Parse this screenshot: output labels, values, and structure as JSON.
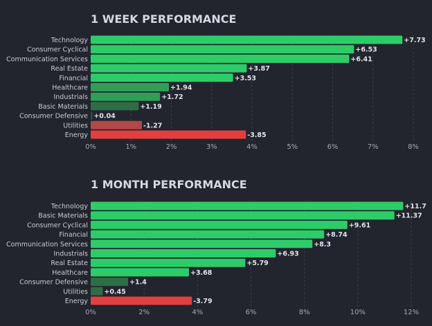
{
  "chart_data": [
    {
      "type": "bar",
      "title": "1 WEEK PERFORMANCE",
      "categories": [
        "Technology",
        "Consumer Cyclical",
        "Communication Services",
        "Real Estate",
        "Financial",
        "Healthcare",
        "Industrials",
        "Basic Materials",
        "Consumer Defensive",
        "Utilities",
        "Energy"
      ],
      "values": [
        7.73,
        6.53,
        6.41,
        3.87,
        3.53,
        1.94,
        1.72,
        1.19,
        0.04,
        -1.27,
        -3.85
      ],
      "value_labels": [
        "+7.73",
        "+6.53",
        "+6.41",
        "+3.87",
        "+3.53",
        "+1.94",
        "+1.72",
        "+1.19",
        "+0.04",
        "-1.27",
        "-3.85"
      ],
      "xlim": [
        0,
        8
      ],
      "xticks": [
        0,
        1,
        2,
        3,
        4,
        5,
        6,
        7,
        8
      ],
      "xtick_labels": [
        "0%",
        "1%",
        "2%",
        "3%",
        "4%",
        "5%",
        "6%",
        "7%",
        "8%"
      ],
      "bar_length": "absolute value",
      "grid": true,
      "colors": {
        "strong_positive": "#2ecc68",
        "mid_positive": "#2f9e57",
        "weak_positive": "#2f6d46",
        "flat": "#3b4a45",
        "weak_negative": "#b34848",
        "strong_negative": "#e2403f"
      }
    },
    {
      "type": "bar",
      "title": "1 MONTH PERFORMANCE",
      "categories": [
        "Technology",
        "Basic Materials",
        "Consumer Cyclical",
        "Financial",
        "Communication Services",
        "Industrials",
        "Real Estate",
        "Healthcare",
        "Consumer Defensive",
        "Utilities",
        "Energy"
      ],
      "values": [
        11.7,
        11.37,
        9.61,
        8.74,
        8.3,
        6.93,
        5.79,
        3.68,
        1.4,
        0.45,
        -3.79
      ],
      "value_labels": [
        "+11.7",
        "+11.37",
        "+9.61",
        "+8.74",
        "+8.3",
        "+6.93",
        "+5.79",
        "+3.68",
        "+1.4",
        "+0.45",
        "-3.79"
      ],
      "xlim": [
        0,
        12
      ],
      "xticks": [
        0,
        2,
        4,
        6,
        8,
        10,
        12
      ],
      "xtick_labels": [
        "0%",
        "2%",
        "4%",
        "6%",
        "8%",
        "10%",
        "12%"
      ],
      "bar_length": "absolute value",
      "grid": true,
      "colors": {
        "strong_positive": "#2ecc68",
        "mid_positive": "#2f9e57",
        "weak_positive": "#2f6d46",
        "flat": "#3b4a45",
        "weak_negative": "#b34848",
        "strong_negative": "#e2403f"
      }
    }
  ]
}
